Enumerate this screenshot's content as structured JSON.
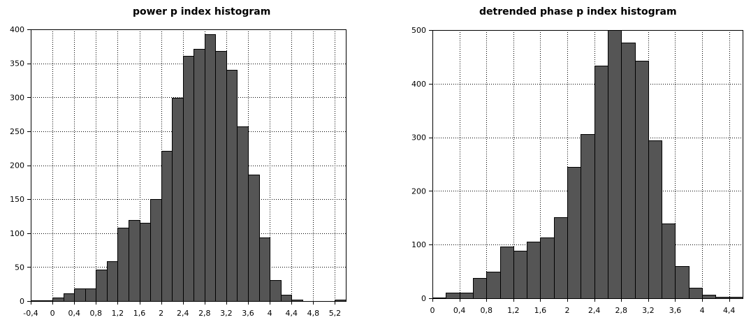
{
  "chart_data": [
    {
      "type": "bar",
      "title": "power p index histogram",
      "xlabel": "",
      "ylabel": "",
      "bin_width": 0.2,
      "xlim": [
        -0.4,
        5.4
      ],
      "ylim": [
        0,
        400
      ],
      "x_ticks": [
        -0.4,
        0,
        0.4,
        0.8,
        1.2,
        1.6,
        2,
        2.4,
        2.8,
        3.2,
        3.6,
        4,
        4.4,
        4.8,
        5.2
      ],
      "x_tick_labels": [
        "-0,4",
        "0",
        "0,4",
        "0,8",
        "1,2",
        "1,6",
        "2",
        "2,4",
        "2,8",
        "3,2",
        "3,6",
        "4",
        "4,4",
        "4,8",
        "5,2"
      ],
      "y_ticks": [
        0,
        50,
        100,
        150,
        200,
        250,
        300,
        350,
        400
      ],
      "y_tick_labels": [
        "0",
        "50",
        "100",
        "150",
        "200",
        "250",
        "300",
        "350",
        "400"
      ],
      "grid": true,
      "bar_color": "#555555",
      "bins_start": [
        -0.4,
        -0.2,
        0,
        0.2,
        0.4,
        0.6,
        0.8,
        1.0,
        1.2,
        1.4,
        1.6,
        1.8,
        2.0,
        2.2,
        2.4,
        2.6,
        2.8,
        3.0,
        3.2,
        3.4,
        3.6,
        3.8,
        4.0,
        4.2,
        4.4,
        4.6,
        4.8,
        5.0,
        5.2
      ],
      "values": [
        1,
        1,
        5,
        11,
        18,
        18,
        46,
        59,
        108,
        119,
        115,
        150,
        221,
        299,
        361,
        371,
        393,
        368,
        340,
        257,
        186,
        94,
        31,
        9,
        2,
        0,
        0,
        0,
        2
      ]
    },
    {
      "type": "bar",
      "title": "detrended phase p index histogram",
      "xlabel": "",
      "ylabel": "",
      "bin_width": 0.2,
      "xlim": [
        0,
        4.6
      ],
      "ylim": [
        0,
        500
      ],
      "x_ticks": [
        0,
        0.4,
        0.8,
        1.2,
        1.6,
        2,
        2.4,
        2.8,
        3.2,
        3.6,
        4,
        4.4
      ],
      "x_tick_labels": [
        "0",
        "0,4",
        "0,8",
        "1,2",
        "1,6",
        "2",
        "2,4",
        "2,8",
        "3,2",
        "3,6",
        "4",
        "4,4"
      ],
      "y_ticks": [
        0,
        100,
        200,
        300,
        400,
        500
      ],
      "y_tick_labels": [
        "0",
        "100",
        "200",
        "300",
        "400",
        "500"
      ],
      "grid": true,
      "bar_color": "#555555",
      "bins_start": [
        0,
        0.2,
        0.4,
        0.6,
        0.8,
        1.0,
        1.2,
        1.4,
        1.6,
        1.8,
        2.0,
        2.2,
        2.4,
        2.6,
        2.8,
        3.0,
        3.2,
        3.4,
        3.6,
        3.8,
        4.0,
        4.2,
        4.4
      ],
      "values": [
        1,
        10,
        10,
        38,
        50,
        97,
        88,
        106,
        113,
        151,
        245,
        306,
        434,
        500,
        476,
        443,
        294,
        139,
        60,
        19,
        6,
        2,
        2
      ]
    }
  ]
}
